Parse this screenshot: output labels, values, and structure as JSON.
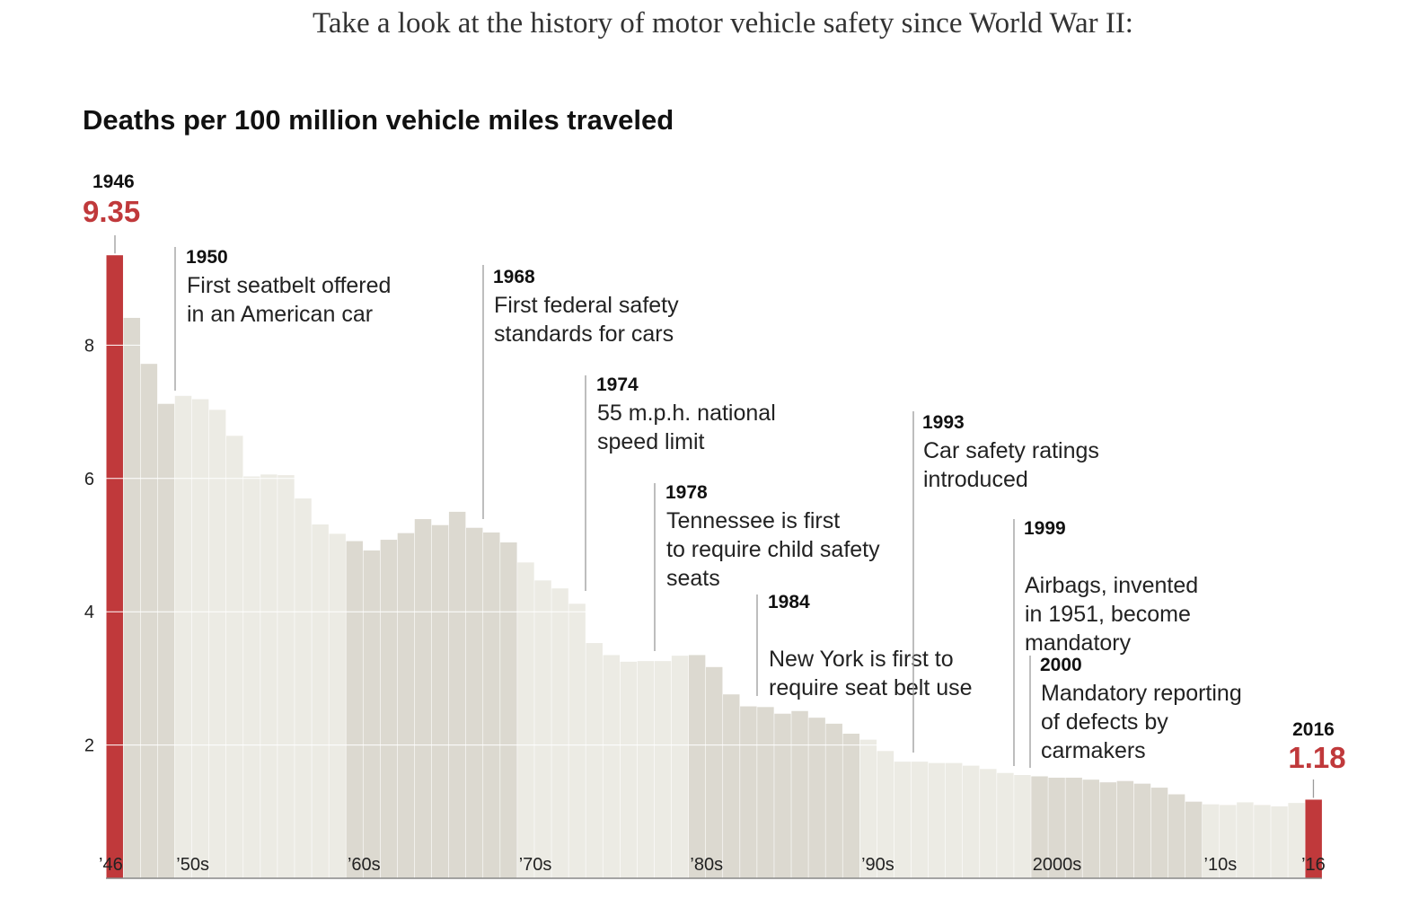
{
  "intro": "Take a look at the history of motor vehicle safety since World War II:",
  "chart_data": {
    "type": "bar",
    "title": "Deaths per 100 million vehicle miles traveled",
    "xlabel": "",
    "ylabel": "",
    "ylim": [
      0,
      10
    ],
    "grid": true,
    "years": [
      1946,
      1947,
      1948,
      1949,
      1950,
      1951,
      1952,
      1953,
      1954,
      1955,
      1956,
      1957,
      1958,
      1959,
      1960,
      1961,
      1962,
      1963,
      1964,
      1965,
      1966,
      1967,
      1968,
      1969,
      1970,
      1971,
      1972,
      1973,
      1974,
      1975,
      1976,
      1977,
      1978,
      1979,
      1980,
      1981,
      1982,
      1983,
      1984,
      1985,
      1986,
      1987,
      1988,
      1989,
      1990,
      1991,
      1992,
      1993,
      1994,
      1995,
      1996,
      1997,
      1998,
      1999,
      2000,
      2001,
      2002,
      2003,
      2004,
      2005,
      2006,
      2007,
      2008,
      2009,
      2010,
      2011,
      2012,
      2013,
      2014,
      2015,
      2016
    ],
    "values": [
      9.35,
      8.41,
      7.72,
      7.12,
      7.24,
      7.19,
      7.03,
      6.64,
      6.03,
      6.06,
      6.05,
      5.7,
      5.31,
      5.17,
      5.06,
      4.92,
      5.08,
      5.18,
      5.39,
      5.3,
      5.5,
      5.26,
      5.19,
      5.04,
      4.74,
      4.47,
      4.35,
      4.12,
      3.53,
      3.35,
      3.25,
      3.26,
      3.26,
      3.34,
      3.35,
      3.17,
      2.76,
      2.58,
      2.57,
      2.47,
      2.51,
      2.41,
      2.32,
      2.17,
      2.08,
      1.91,
      1.75,
      1.75,
      1.73,
      1.73,
      1.69,
      1.64,
      1.58,
      1.55,
      1.53,
      1.51,
      1.51,
      1.48,
      1.44,
      1.46,
      1.42,
      1.36,
      1.26,
      1.15,
      1.11,
      1.1,
      1.14,
      1.1,
      1.08,
      1.13,
      1.18
    ],
    "yticks": [
      "2",
      "4",
      "6",
      "8"
    ],
    "ytick_values": [
      2,
      4,
      6,
      8
    ],
    "xticks": [
      {
        "label": "’46",
        "year": 1946
      },
      {
        "label": "’50s",
        "year": 1950
      },
      {
        "label": "’60s",
        "year": 1960
      },
      {
        "label": "’70s",
        "year": 1970
      },
      {
        "label": "’80s",
        "year": 1980
      },
      {
        "label": "’90s",
        "year": 1990
      },
      {
        "label": "2000s",
        "year": 2000
      },
      {
        "label": "’10s",
        "year": 2010
      },
      {
        "label": "’16",
        "year": 2016
      }
    ],
    "highlights": [
      {
        "year_label": "1946",
        "value_label": "9.35",
        "year": 1946,
        "value": 9.35,
        "anchor": "start"
      },
      {
        "year_label": "2016",
        "value_label": "1.18",
        "year": 2016,
        "value": 1.18,
        "anchor": "middle"
      }
    ],
    "annotations": [
      {
        "year": 1950,
        "year_label": "1950",
        "lines": [
          "First seatbelt offered",
          "in an American car"
        ],
        "line_top": 1.0,
        "text_offset": 0.6
      },
      {
        "year": 1968,
        "year_label": "1968",
        "lines": [
          "First federal safety",
          "standards for cars"
        ],
        "line_top": 1.0,
        "text_offset": 0.6
      },
      {
        "year": 1974,
        "year_label": "1974",
        "lines": [
          "55 m.p.h. national",
          "speed limit"
        ],
        "line_top": 1.0,
        "text_offset": 0.6
      },
      {
        "year": 1978,
        "year_label": "1978",
        "lines": [
          "Tennessee is first",
          "to require child safety",
          "seats"
        ],
        "line_top": 1.0,
        "text_offset": 0.6
      },
      {
        "year": 1984,
        "year_label": "1984",
        "lines": [
          "",
          "New York is first to",
          "require seat belt use"
        ],
        "line_top": 1.0,
        "text_offset": 0.6
      },
      {
        "year": 1993,
        "year_label": "1993",
        "lines": [
          "Car safety ratings",
          "introduced"
        ],
        "line_top": 1.0,
        "text_offset": 0.6
      },
      {
        "year": 1999,
        "year_label": "1999",
        "lines": [
          "",
          "Airbags, invented",
          "in 1951, become",
          "mandatory"
        ],
        "line_top": 1.0,
        "text_offset": 0.6
      },
      {
        "year": 2000,
        "year_label": "2000",
        "lines": [
          "Mandatory reporting",
          "of defects by",
          "carmakers"
        ],
        "line_top": 1.0,
        "text_offset": 0.6
      }
    ],
    "colors": {
      "highlight": "#c0393b",
      "band_dark": "#dcd9d0",
      "band_light": "#ecebe4",
      "grid": "#ffffff",
      "axis": "#888888",
      "leader": "#9a9a9a"
    }
  }
}
